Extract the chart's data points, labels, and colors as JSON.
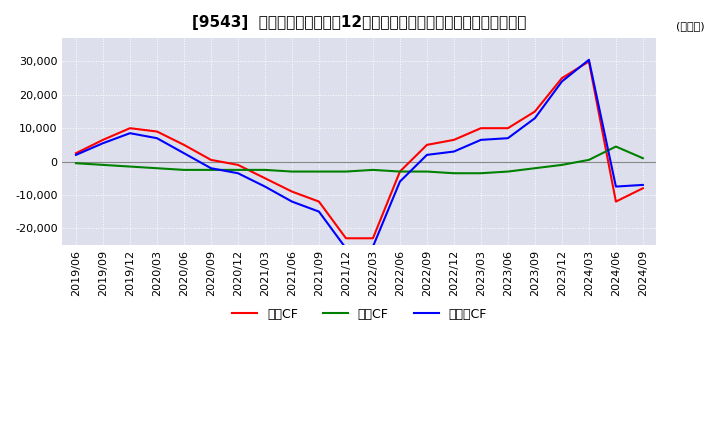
{
  "title": "[9543]  キャッシュフローの12か月移動合計の対前年同期増減額の推移",
  "ylabel": "(百万円)",
  "ylim": [
    -25000,
    37000
  ],
  "yticks": [
    -20000,
    -10000,
    0,
    10000,
    20000,
    30000
  ],
  "legend_labels": [
    "営業CF",
    "投資CF",
    "フリーCF"
  ],
  "colors": {
    "eigyo": "#ff0000",
    "toshi": "#008000",
    "free": "#0000ff"
  },
  "dates": [
    "2019/06",
    "2019/09",
    "2019/12",
    "2020/03",
    "2020/06",
    "2020/09",
    "2020/12",
    "2021/03",
    "2021/06",
    "2021/09",
    "2021/12",
    "2022/03",
    "2022/06",
    "2022/09",
    "2022/12",
    "2023/03",
    "2023/06",
    "2023/09",
    "2023/12",
    "2024/03",
    "2024/06",
    "2024/09"
  ],
  "eigyo_cf": [
    2500,
    6500,
    10000,
    9000,
    5000,
    500,
    -1000,
    -5000,
    -9000,
    -12000,
    -23000,
    -23000,
    -3000,
    5000,
    6500,
    10000,
    10000,
    15000,
    25000,
    30000,
    -12000,
    -8000
  ],
  "toshi_cf": [
    -500,
    -1000,
    -1500,
    -2000,
    -2500,
    -2500,
    -2500,
    -2500,
    -3000,
    -3000,
    -3000,
    -2500,
    -3000,
    -3000,
    -3500,
    -3500,
    -3000,
    -2000,
    -1000,
    500,
    4500,
    1000
  ],
  "free_cf": [
    2000,
    5500,
    8500,
    7000,
    2500,
    -2000,
    -3500,
    -7500,
    -12000,
    -15000,
    -26000,
    -25500,
    -6000,
    2000,
    3000,
    6500,
    7000,
    13000,
    24000,
    30500,
    -7500,
    -7000
  ],
  "background_color": "#ffffff",
  "plot_bg_color": "#dde0ec",
  "grid_color": "#ffffff",
  "title_fontsize": 11,
  "tick_fontsize": 8,
  "linewidth": 1.5
}
